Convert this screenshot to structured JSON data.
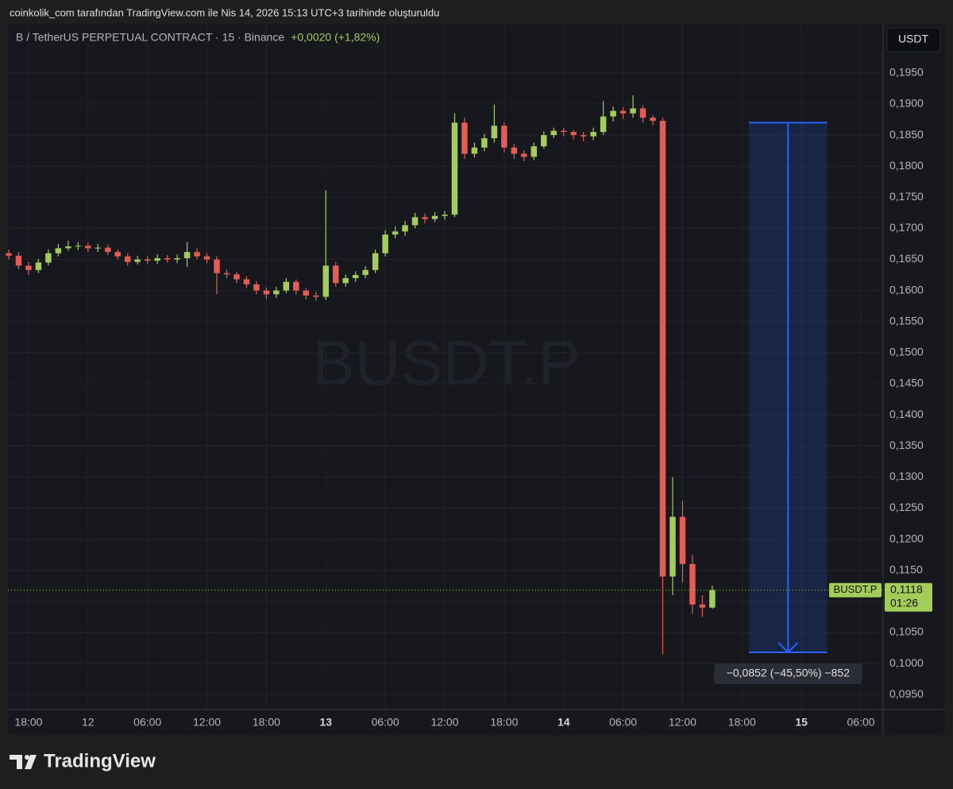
{
  "header": {
    "text": "coinkolik_com tarafından TradingView.com ile Nis 14, 2026 15:13 UTC+3 tarihinde oluşturuldu"
  },
  "chart_data": {
    "type": "candlestick",
    "symbol_line": "B / TetherUS PERPETUAL CONTRACT · 15 · Binance",
    "change": "+0,0020 (+1,82%)",
    "watermark": "BUSDT.P",
    "currency": "USDT",
    "up_color": "#a3cc5b",
    "down_color": "#e35d55",
    "x": [
      16,
      17,
      18,
      19,
      20,
      21,
      22,
      23,
      24,
      25,
      26,
      27,
      28,
      29,
      30,
      31,
      32,
      33,
      34,
      35,
      36,
      37,
      38,
      39,
      40,
      41,
      42,
      43,
      44,
      45,
      46,
      47,
      48,
      49,
      50,
      51,
      52,
      53,
      54,
      55,
      56,
      57,
      58,
      59,
      60,
      61,
      62,
      63,
      64,
      65,
      66,
      67,
      68,
      69,
      70,
      71,
      72,
      73,
      74,
      75,
      76,
      77,
      78,
      79,
      80,
      81,
      82,
      83,
      84,
      85,
      86,
      87
    ],
    "open": [
      0.166,
      0.1656,
      0.164,
      0.1633,
      0.1645,
      0.166,
      0.1668,
      0.1671,
      0.1672,
      0.1668,
      0.1669,
      0.1662,
      0.1655,
      0.1646,
      0.165,
      0.1648,
      0.1652,
      0.165,
      0.1652,
      0.1662,
      0.1655,
      0.165,
      0.1628,
      0.1626,
      0.1618,
      0.161,
      0.16,
      0.1594,
      0.16,
      0.1614,
      0.16,
      0.1592,
      0.159,
      0.164,
      0.1612,
      0.162,
      0.1625,
      0.1633,
      0.166,
      0.169,
      0.1695,
      0.1705,
      0.1718,
      0.1715,
      0.172,
      0.1722,
      0.187,
      0.182,
      0.183,
      0.1845,
      0.1865,
      0.183,
      0.182,
      0.1815,
      0.1832,
      0.185,
      0.1857,
      0.1855,
      0.185,
      0.1848,
      0.1855,
      0.188,
      0.1889,
      0.1885,
      0.1893,
      0.1878,
      0.1873,
      0.114,
      0.1236,
      0.116,
      0.1095,
      0.109
    ],
    "high": [
      0.1666,
      0.1662,
      0.1646,
      0.1651,
      0.1666,
      0.1675,
      0.168,
      0.1678,
      0.1677,
      0.1675,
      0.1674,
      0.1666,
      0.166,
      0.1656,
      0.1655,
      0.1658,
      0.1657,
      0.1658,
      0.1678,
      0.1668,
      0.166,
      0.1655,
      0.1634,
      0.163,
      0.1623,
      0.1615,
      0.1605,
      0.1606,
      0.162,
      0.1618,
      0.1604,
      0.1598,
      0.1761,
      0.1646,
      0.1626,
      0.1631,
      0.1639,
      0.1666,
      0.1697,
      0.1703,
      0.1712,
      0.1725,
      0.1724,
      0.1726,
      0.1728,
      0.1885,
      0.1878,
      0.1838,
      0.1852,
      0.1899,
      0.187,
      0.1836,
      0.1826,
      0.1838,
      0.1856,
      0.1862,
      0.1862,
      0.1858,
      0.1855,
      0.1862,
      0.1905,
      0.1896,
      0.1895,
      0.1914,
      0.1898,
      0.1882,
      0.1878,
      0.13,
      0.1262,
      0.1175,
      0.111,
      0.1125
    ],
    "low": [
      0.165,
      0.1634,
      0.1625,
      0.1628,
      0.164,
      0.1655,
      0.1664,
      0.1665,
      0.1662,
      0.1662,
      0.1657,
      0.165,
      0.164,
      0.1642,
      0.1643,
      0.1643,
      0.1645,
      0.1644,
      0.1638,
      0.165,
      0.1644,
      0.1594,
      0.162,
      0.1612,
      0.1604,
      0.1594,
      0.1586,
      0.1588,
      0.1596,
      0.1594,
      0.1586,
      0.1584,
      0.1585,
      0.1606,
      0.1606,
      0.1614,
      0.162,
      0.1628,
      0.1655,
      0.1684,
      0.1688,
      0.17,
      0.1708,
      0.171,
      0.1714,
      0.1718,
      0.1812,
      0.1814,
      0.1824,
      0.1838,
      0.1822,
      0.1812,
      0.1808,
      0.181,
      0.1828,
      0.1845,
      0.1848,
      0.1843,
      0.184,
      0.1842,
      0.185,
      0.1872,
      0.1876,
      0.1878,
      0.187,
      0.1866,
      0.1015,
      0.111,
      0.113,
      0.108,
      0.1075,
      0.1088
    ],
    "close": [
      0.1656,
      0.164,
      0.1633,
      0.1645,
      0.166,
      0.1668,
      0.1671,
      0.1672,
      0.1668,
      0.1669,
      0.1662,
      0.1655,
      0.1646,
      0.165,
      0.1648,
      0.1652,
      0.165,
      0.1652,
      0.1662,
      0.1655,
      0.165,
      0.1628,
      0.1626,
      0.1618,
      0.161,
      0.16,
      0.1594,
      0.16,
      0.1614,
      0.16,
      0.1592,
      0.159,
      0.164,
      0.1612,
      0.162,
      0.1625,
      0.1633,
      0.166,
      0.169,
      0.1695,
      0.1705,
      0.1718,
      0.1715,
      0.172,
      0.1722,
      0.187,
      0.182,
      0.183,
      0.1845,
      0.1865,
      0.183,
      0.182,
      0.1815,
      0.1832,
      0.185,
      0.1857,
      0.1855,
      0.185,
      0.1848,
      0.1855,
      0.188,
      0.1889,
      0.1885,
      0.1893,
      0.1878,
      0.1873,
      0.114,
      0.1236,
      0.116,
      0.1095,
      0.109,
      0.1118
    ],
    "xlim": [
      15.92,
      104.24
    ],
    "ylim": [
      0.0926,
      0.2029
    ],
    "xticks": [
      {
        "value": 18,
        "label": "18:00"
      },
      {
        "value": 24,
        "label": "12"
      },
      {
        "value": 30,
        "label": "06:00"
      },
      {
        "value": 36,
        "label": "12:00"
      },
      {
        "value": 42,
        "label": "18:00"
      },
      {
        "value": 48,
        "label": "13"
      },
      {
        "value": 54,
        "label": "06:00"
      },
      {
        "value": 60,
        "label": "12:00"
      },
      {
        "value": 66,
        "label": "18:00"
      },
      {
        "value": 72,
        "label": "14"
      },
      {
        "value": 78,
        "label": "06:00"
      },
      {
        "value": 84,
        "label": "12:00"
      },
      {
        "value": 90,
        "label": "18:00"
      },
      {
        "value": 96,
        "label": "15"
      },
      {
        "value": 102,
        "label": "06:00"
      }
    ],
    "yticks": [
      {
        "value": 0.095,
        "label": "0,0950"
      },
      {
        "value": 0.1,
        "label": "0,1000"
      },
      {
        "value": 0.105,
        "label": "0,1050"
      },
      {
        "value": 0.11,
        "label": "0,1100"
      },
      {
        "value": 0.115,
        "label": "0,1150"
      },
      {
        "value": 0.12,
        "label": "0,1200"
      },
      {
        "value": 0.125,
        "label": "0,1250"
      },
      {
        "value": 0.13,
        "label": "0,1300"
      },
      {
        "value": 0.135,
        "label": "0,1350"
      },
      {
        "value": 0.14,
        "label": "0,1400"
      },
      {
        "value": 0.145,
        "label": "0,1450"
      },
      {
        "value": 0.15,
        "label": "0,1500"
      },
      {
        "value": 0.155,
        "label": "0,1550"
      },
      {
        "value": 0.16,
        "label": "0,1600"
      },
      {
        "value": 0.165,
        "label": "0,1650"
      },
      {
        "value": 0.17,
        "label": "0,1700"
      },
      {
        "value": 0.175,
        "label": "0,1750"
      },
      {
        "value": 0.18,
        "label": "0,1800"
      },
      {
        "value": 0.185,
        "label": "0,1850"
      },
      {
        "value": 0.19,
        "label": "0,1900"
      },
      {
        "value": 0.195,
        "label": "0,1950"
      }
    ],
    "grid": true,
    "last_price": {
      "value": 0.1118,
      "label": "0,1118",
      "symbol": "BUSDT.P",
      "countdown": "01:26",
      "color": "#a3cc5b"
    },
    "measure": {
      "x": [
        90.7,
        98.6
      ],
      "from": 0.187,
      "to": 0.1018,
      "label": "−0,0852 (−45,50%) −852",
      "color": "#2962ff"
    }
  },
  "footer": {
    "brand": "TradingView"
  }
}
